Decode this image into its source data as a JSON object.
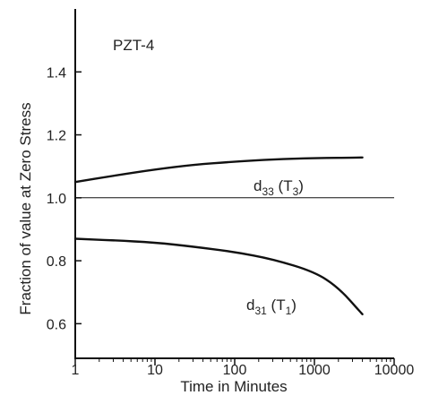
{
  "chart_data": {
    "type": "line",
    "title": "",
    "xlabel": "Time in Minutes",
    "ylabel": "Fraction of value at Zero Stress",
    "xscale": "log",
    "xlim": [
      1,
      10000
    ],
    "ylim": [
      0.49,
      1.6
    ],
    "x_ticks": [
      1,
      10,
      100,
      1000,
      10000
    ],
    "x_tick_labels": [
      "1",
      "10",
      "100",
      "1000",
      "10000"
    ],
    "y_ticks": [
      0.6,
      0.8,
      1.0,
      1.2,
      1.4
    ],
    "y_tick_labels": [
      "0.6",
      "0.8",
      "1.0",
      "1.2",
      "1.4"
    ],
    "grid": false,
    "legend": "none",
    "reference_line": {
      "y": 1.0
    },
    "annotations": {
      "material": "PZT-4",
      "series1_main": "d",
      "series1_sub": "33",
      "series1_paren_open": " (T",
      "series1_paren_sub": "3",
      "series1_paren_close": ")",
      "series2_main": "d",
      "series2_sub": "31",
      "series2_paren_open": " (T",
      "series2_paren_sub": "1",
      "series2_paren_close": ")"
    },
    "series": [
      {
        "id": "d33",
        "color": "#111111",
        "points": [
          [
            1,
            1.05
          ],
          [
            3,
            1.07
          ],
          [
            10,
            1.09
          ],
          [
            30,
            1.105
          ],
          [
            100,
            1.115
          ],
          [
            300,
            1.122
          ],
          [
            1000,
            1.126
          ],
          [
            4000,
            1.128
          ]
        ]
      },
      {
        "id": "d31",
        "color": "#111111",
        "points": [
          [
            1,
            0.87
          ],
          [
            3,
            0.865
          ],
          [
            10,
            0.858
          ],
          [
            30,
            0.845
          ],
          [
            100,
            0.828
          ],
          [
            300,
            0.805
          ],
          [
            1000,
            0.765
          ],
          [
            2000,
            0.715
          ],
          [
            4000,
            0.63
          ]
        ]
      }
    ]
  }
}
